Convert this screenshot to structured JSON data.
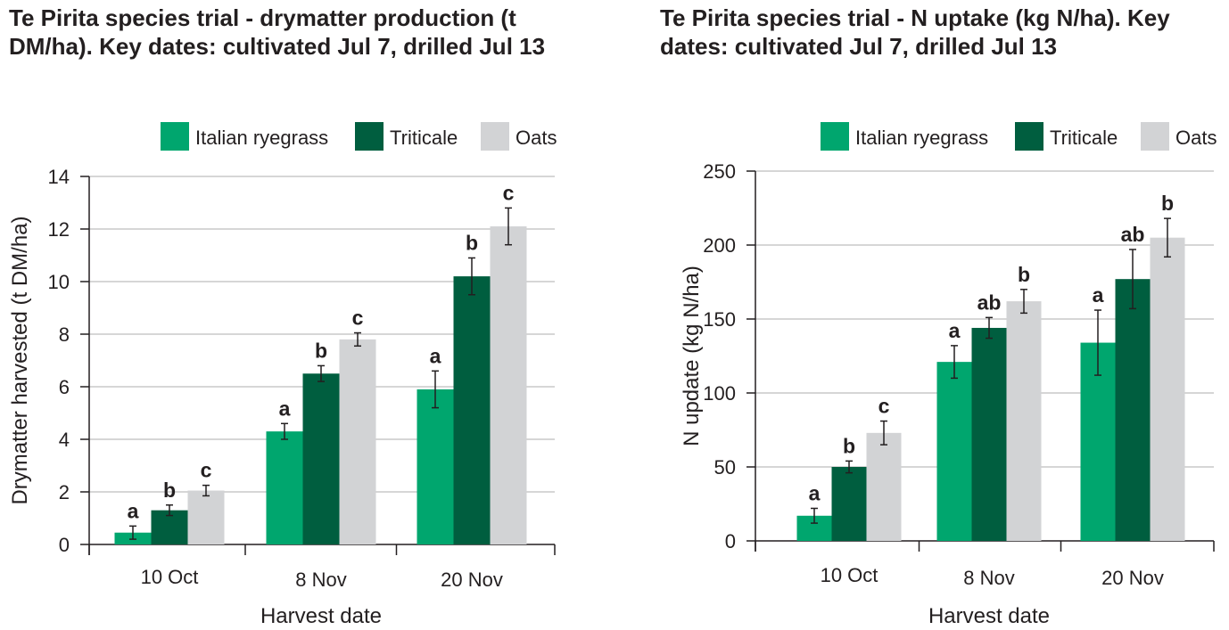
{
  "chart_data": [
    {
      "type": "bar",
      "title": "Te Pirita species trial - drymatter production (t DM/ha). Key dates: cultivated Jul 7, drilled Jul 13",
      "xlabel": "Harvest date",
      "ylabel": "Drymatter harvested (t DM/ha)",
      "categories": [
        "10 Oct",
        "8 Nov",
        "20 Nov"
      ],
      "ylim": [
        0,
        14
      ],
      "yticks": [
        0,
        2,
        4,
        6,
        8,
        10,
        12,
        14
      ],
      "grid": true,
      "legend": "top-right",
      "series": [
        {
          "name": "Italian ryegrass",
          "color": "#00a66e",
          "values": [
            0.45,
            4.3,
            5.9
          ],
          "errors": [
            0.25,
            0.3,
            0.7
          ],
          "labels": [
            "a",
            "a",
            "a"
          ]
        },
        {
          "name": "Triticale",
          "color": "#005e3f",
          "values": [
            1.3,
            6.5,
            10.2
          ],
          "errors": [
            0.2,
            0.3,
            0.7
          ],
          "labels": [
            "b",
            "b",
            "b"
          ]
        },
        {
          "name": "Oats",
          "color": "#d2d3d5",
          "values": [
            2.05,
            7.8,
            12.1
          ],
          "errors": [
            0.2,
            0.25,
            0.7
          ],
          "labels": [
            "c",
            "c",
            "c"
          ]
        }
      ]
    },
    {
      "type": "bar",
      "title": "Te Pirita species trial - N uptake (kg N/ha). Key dates: cultivated Jul 7, drilled Jul 13",
      "xlabel": "Harvest date",
      "ylabel": "N update (kg N/ha)",
      "categories": [
        "10 Oct",
        "8 Nov",
        "20 Nov"
      ],
      "ylim": [
        0,
        250
      ],
      "yticks": [
        0,
        50,
        100,
        150,
        200,
        250
      ],
      "grid": true,
      "legend": "top-right",
      "series": [
        {
          "name": "Italian ryegrass",
          "color": "#00a66e",
          "values": [
            17,
            121,
            134
          ],
          "errors": [
            5,
            11,
            22
          ],
          "labels": [
            "a",
            "a",
            "a"
          ]
        },
        {
          "name": "Triticale",
          "color": "#005e3f",
          "values": [
            50,
            144,
            177
          ],
          "errors": [
            4,
            7,
            20
          ],
          "labels": [
            "b",
            "ab",
            "ab"
          ]
        },
        {
          "name": "Oats",
          "color": "#d2d3d5",
          "values": [
            73,
            162,
            205
          ],
          "errors": [
            8,
            8,
            13
          ],
          "labels": [
            "c",
            "b",
            "b"
          ]
        }
      ]
    }
  ]
}
